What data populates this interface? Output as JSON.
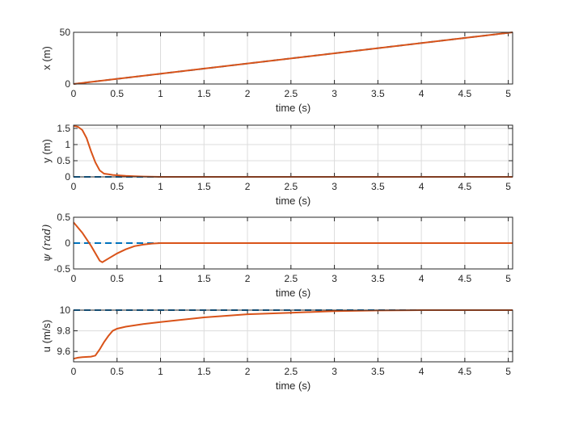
{
  "chart_data": [
    {
      "type": "line",
      "xlabel": "time (s)",
      "ylabel": "x (m)",
      "xlim": [
        0,
        5.05
      ],
      "ylim": [
        0,
        50
      ],
      "xticks": [
        "0",
        "0.5",
        "1",
        "1.5",
        "2",
        "2.5",
        "3",
        "3.5",
        "4",
        "4.5",
        "5"
      ],
      "yticks": [
        "0",
        "50"
      ],
      "grid": true,
      "series": [
        {
          "role": "reference",
          "color": "#0072bd",
          "style": "dashed",
          "x": [
            0,
            5.05
          ],
          "y": [
            0,
            50.5
          ]
        },
        {
          "role": "actual",
          "color": "#d95319",
          "style": "solid",
          "x": [
            0,
            5.05
          ],
          "y": [
            0,
            50.5
          ]
        }
      ]
    },
    {
      "type": "line",
      "xlabel": "time (s)",
      "ylabel": "y (m)",
      "xlim": [
        0,
        5.05
      ],
      "ylim": [
        0,
        1.6
      ],
      "xticks": [
        "0",
        "0.5",
        "1",
        "1.5",
        "2",
        "2.5",
        "3",
        "3.5",
        "4",
        "4.5",
        "5"
      ],
      "yticks": [
        "0",
        "0.5",
        "1",
        "1.5"
      ],
      "grid": true,
      "series": [
        {
          "role": "reference",
          "color": "#0072bd",
          "style": "dashed",
          "x": [
            0,
            5.05
          ],
          "y": [
            0,
            0
          ]
        },
        {
          "role": "actual",
          "color": "#d95319",
          "style": "solid",
          "x": [
            0,
            0.05,
            0.1,
            0.15,
            0.2,
            0.25,
            0.3,
            0.35,
            0.4,
            0.45,
            0.5,
            0.6,
            0.7,
            0.8,
            1.0,
            5.05
          ],
          "y": [
            1.58,
            1.55,
            1.45,
            1.2,
            0.8,
            0.45,
            0.2,
            0.1,
            0.08,
            0.06,
            0.05,
            0.03,
            0.02,
            0.01,
            0.0,
            0.0
          ]
        }
      ]
    },
    {
      "type": "line",
      "xlabel": "time (s)",
      "ylabel": "ψ (rad)",
      "xlim": [
        0,
        5.05
      ],
      "ylim": [
        -0.5,
        0.5
      ],
      "xticks": [
        "0",
        "0.5",
        "1",
        "1.5",
        "2",
        "2.5",
        "3",
        "3.5",
        "4",
        "4.5",
        "5"
      ],
      "yticks": [
        "-0.5",
        "0",
        "0.5"
      ],
      "grid": true,
      "series": [
        {
          "role": "reference",
          "color": "#0072bd",
          "style": "dashed",
          "x": [
            0,
            5.05
          ],
          "y": [
            0,
            0
          ]
        },
        {
          "role": "actual",
          "color": "#d95319",
          "style": "solid",
          "x": [
            0,
            0.1,
            0.2,
            0.3,
            0.33,
            0.4,
            0.5,
            0.6,
            0.7,
            0.8,
            0.9,
            1.0,
            1.2,
            1.5,
            5.05
          ],
          "y": [
            0.4,
            0.2,
            -0.05,
            -0.34,
            -0.37,
            -0.3,
            -0.2,
            -0.12,
            -0.06,
            -0.03,
            -0.01,
            0.0,
            0.0,
            0.0,
            0.0
          ]
        }
      ]
    },
    {
      "type": "line",
      "xlabel": "time (s)",
      "ylabel": "u (m/s)",
      "xlim": [
        0,
        5.05
      ],
      "ylim": [
        9.5,
        10
      ],
      "xticks": [
        "0",
        "0.5",
        "1",
        "1.5",
        "2",
        "2.5",
        "3",
        "3.5",
        "4",
        "4.5",
        "5"
      ],
      "yticks": [
        "9.6",
        "9.8",
        "10"
      ],
      "grid": true,
      "series": [
        {
          "role": "reference",
          "color": "#0072bd",
          "style": "dashed",
          "x": [
            0,
            5.05
          ],
          "y": [
            10,
            10
          ]
        },
        {
          "role": "actual",
          "color": "#d95319",
          "style": "solid",
          "x": [
            0,
            0.05,
            0.1,
            0.2,
            0.25,
            0.3,
            0.35,
            0.4,
            0.45,
            0.5,
            0.6,
            0.8,
            1.0,
            1.5,
            2.0,
            2.5,
            3.0,
            3.5,
            4.0,
            5.05
          ],
          "y": [
            9.53,
            9.54,
            9.545,
            9.55,
            9.56,
            9.62,
            9.69,
            9.75,
            9.8,
            9.82,
            9.84,
            9.865,
            9.885,
            9.93,
            9.96,
            9.975,
            9.99,
            9.997,
            10.0,
            10.0
          ]
        }
      ]
    }
  ]
}
